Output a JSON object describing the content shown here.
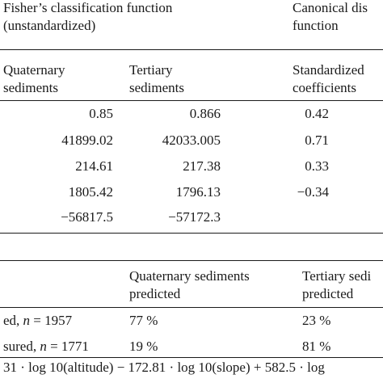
{
  "table1": {
    "header": {
      "group1_line1": "Fisher’s classification function",
      "group1_line2": "(unstandardized)",
      "group2_line1": "Canonical dis",
      "group2_line2": "function"
    },
    "subheader": {
      "col1_line1": "Quaternary",
      "col1_line2": "sediments",
      "col2_line1": "Tertiary",
      "col2_line2": "sediments",
      "col3_line1": "Standardized",
      "col3_line2": "coefficients"
    },
    "rows": [
      {
        "quaternary": "0.85",
        "tertiary": "0.866",
        "standardized": "0.42"
      },
      {
        "quaternary": "41899.02",
        "tertiary": "42033.005",
        "standardized": "0.71"
      },
      {
        "quaternary": "214.61",
        "tertiary": "217.38",
        "standardized": "0.33"
      },
      {
        "quaternary": "1805.42",
        "tertiary": "1796.13",
        "standardized": "−0.34"
      },
      {
        "quaternary": "−56817.5",
        "tertiary": "−57172.3",
        "standardized": ""
      }
    ]
  },
  "table2": {
    "header": {
      "col1_line1": "Quaternary sediments",
      "col1_line2": "predicted",
      "col2_line1": "Tertiary sedi",
      "col2_line2": "predicted"
    },
    "rows": [
      {
        "label_prefix": "ed, ",
        "n_symbol": "n",
        "n_value": " = 1957",
        "quaternary": "77 %",
        "tertiary": "23 %"
      },
      {
        "label_prefix": "sured, ",
        "n_symbol": "n",
        "n_value": " = 1771",
        "quaternary": "19 %",
        "tertiary": "81 %"
      }
    ]
  },
  "formula": "31 · log 10(altitude) − 172.81 · log 10(slope) + 582.5 · log"
}
